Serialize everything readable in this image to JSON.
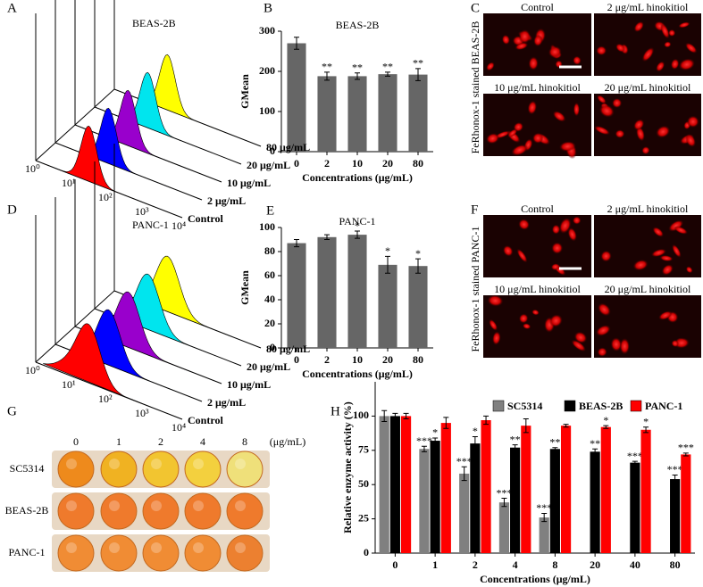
{
  "chart_data": [
    {
      "type": "bar",
      "panel": "B",
      "title": "BEAS-2B",
      "categories": [
        "0",
        "2",
        "10",
        "20",
        "80"
      ],
      "values": [
        270,
        188,
        188,
        193,
        192
      ],
      "errors": [
        15,
        10,
        8,
        5,
        15
      ],
      "significance": [
        null,
        "**",
        "**",
        "**",
        "**"
      ],
      "color": "#666666",
      "ylim": [
        0,
        300
      ],
      "yticks": [
        0,
        100,
        200,
        300
      ],
      "xlabel": "Concentrations (μg/mL)",
      "ylabel": "GMean"
    },
    {
      "type": "bar",
      "panel": "E",
      "title": "PANC-1",
      "categories": [
        "0",
        "2",
        "10",
        "20",
        "80"
      ],
      "values": [
        87,
        92,
        94,
        69,
        68
      ],
      "errors": [
        3,
        2,
        3,
        7,
        6
      ],
      "significance": [
        null,
        null,
        "*",
        "*",
        "*"
      ],
      "color": "#666666",
      "ylim": [
        0,
        100
      ],
      "yticks": [
        0,
        20,
        40,
        60,
        80,
        100
      ],
      "xlabel": "Concentrations (μg/mL)",
      "ylabel": "GMean"
    },
    {
      "type": "grouped-bar",
      "panel": "H",
      "categories": [
        "0",
        "1",
        "2",
        "4",
        "8",
        "20",
        "40",
        "80"
      ],
      "series": [
        {
          "name": "SC5314",
          "color": "#808080",
          "values": [
            100,
            76,
            58,
            37,
            26,
            null,
            null,
            null
          ],
          "errors": [
            4,
            2,
            5,
            3,
            3,
            null,
            null,
            null
          ],
          "significance": [
            null,
            "***",
            "***",
            "***",
            "***",
            null,
            null,
            null
          ]
        },
        {
          "name": "BEAS-2B",
          "color": "#000000",
          "values": [
            100,
            82,
            80,
            77,
            76,
            74,
            66,
            54
          ],
          "errors": [
            2,
            2,
            5,
            2,
            1,
            2,
            1,
            3
          ],
          "significance": [
            null,
            "*",
            "*",
            "**",
            "**",
            "**",
            "***",
            "***"
          ]
        },
        {
          "name": "PANC-1",
          "color": "#ff0000",
          "values": [
            100,
            95,
            97,
            93,
            93,
            92,
            90,
            72
          ],
          "errors": [
            2,
            4,
            3,
            5,
            1,
            1,
            2,
            1
          ],
          "significance": [
            null,
            null,
            null,
            null,
            null,
            "*",
            "*",
            "***"
          ]
        }
      ],
      "ylim": [
        0,
        125
      ],
      "yticks": [
        0,
        25,
        50,
        75,
        100
      ],
      "legend": "top-right",
      "xlabel": "Concentrations (μg/mL)",
      "ylabel": "Relative  enzyme activity (%)"
    }
  ],
  "flow_panels": [
    {
      "panel": "A",
      "title": "BEAS-2B",
      "xticks": [
        "10⁰",
        "10¹",
        "10²",
        "10³",
        "10⁴"
      ],
      "layers": [
        "Control",
        "2 μg/mL",
        "10 μg/mL",
        "20 μg/mL",
        "80 μg/mL"
      ],
      "colors": [
        "#ff0000",
        "#0000ff",
        "#9900cc",
        "#00e5ee",
        "#ffff00"
      ]
    },
    {
      "panel": "D",
      "title": "PANC-1",
      "xticks": [
        "10⁰",
        "10¹",
        "10²",
        "10³",
        "10⁴"
      ],
      "layers": [
        "Control",
        "2 μg/mL",
        "10 μg/mL",
        "20 μg/mL",
        "80 μg/mL"
      ],
      "colors": [
        "#ff0000",
        "#0000ff",
        "#9900cc",
        "#00e5ee",
        "#ffff00"
      ]
    }
  ],
  "micrographs": [
    {
      "panel": "C",
      "side_label": "FeRhonox-1 stained BEAS-2B",
      "captions": [
        "Control",
        "2 μg/mL hinokitiol",
        "10 μg/mL hinokitiol",
        "20 μg/mL hinokitiol"
      ]
    },
    {
      "panel": "F",
      "side_label": "FeRhonox-1 stained PANC-1",
      "captions": [
        "Control",
        "2 μg/mL hinokitiol",
        "10 μg/mL hinokitiol",
        "20 μg/mL hinokitiol"
      ]
    }
  ],
  "plate": {
    "panel": "G",
    "columns": [
      "0",
      "1",
      "2",
      "4",
      "8"
    ],
    "unit": "(μg/mL)",
    "rows": [
      "SC5314",
      "BEAS-2B",
      "PANC-1"
    ]
  }
}
